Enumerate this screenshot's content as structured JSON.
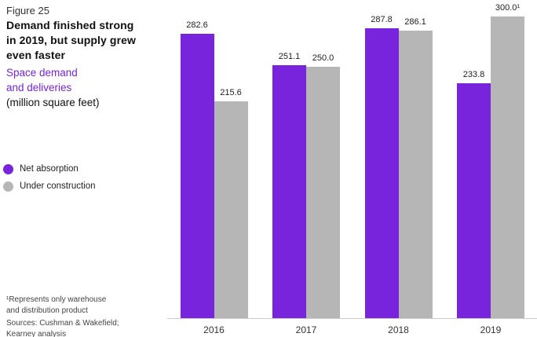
{
  "figure_label": "Figure 25",
  "title": "Demand finished strong\nin 2019, but supply grew\neven faster",
  "subtitle": "Space demand\nand deliveries",
  "unit": "(million square feet)",
  "legend": [
    {
      "label": "Net absorption",
      "color": "#7823DC"
    },
    {
      "label": "Under construction",
      "color": "#B6B6B6"
    }
  ],
  "footnote": {
    "note": "¹Represents only warehouse\nand distribution product",
    "sources": "Sources: Cushman & Wakefield;\nKearney analysis"
  },
  "colors": {
    "net_absorption": "#7823DC",
    "under_construction": "#B6B6B6",
    "axis_line": "#CBCBCB",
    "accent_text": "#7823DC"
  },
  "chart_data": {
    "type": "bar",
    "title": "Space demand and deliveries (million square feet)",
    "categories": [
      "2016",
      "2017",
      "2018",
      "2019"
    ],
    "series": [
      {
        "name": "Net absorption",
        "color": "#7823DC",
        "values": [
          282.6,
          251.1,
          287.8,
          233.8
        ],
        "labels": [
          "282.6",
          "251.1",
          "287.8",
          "233.8"
        ]
      },
      {
        "name": "Under construction",
        "color": "#B6B6B6",
        "values": [
          215.6,
          250.0,
          286.1,
          300.0
        ],
        "labels": [
          "215.6",
          "250.0",
          "286.1",
          "300.0¹"
        ]
      }
    ],
    "xlabel": "",
    "ylabel": "million square feet",
    "ylim": [
      0,
      310
    ],
    "grid": false,
    "legend_position": "left"
  }
}
